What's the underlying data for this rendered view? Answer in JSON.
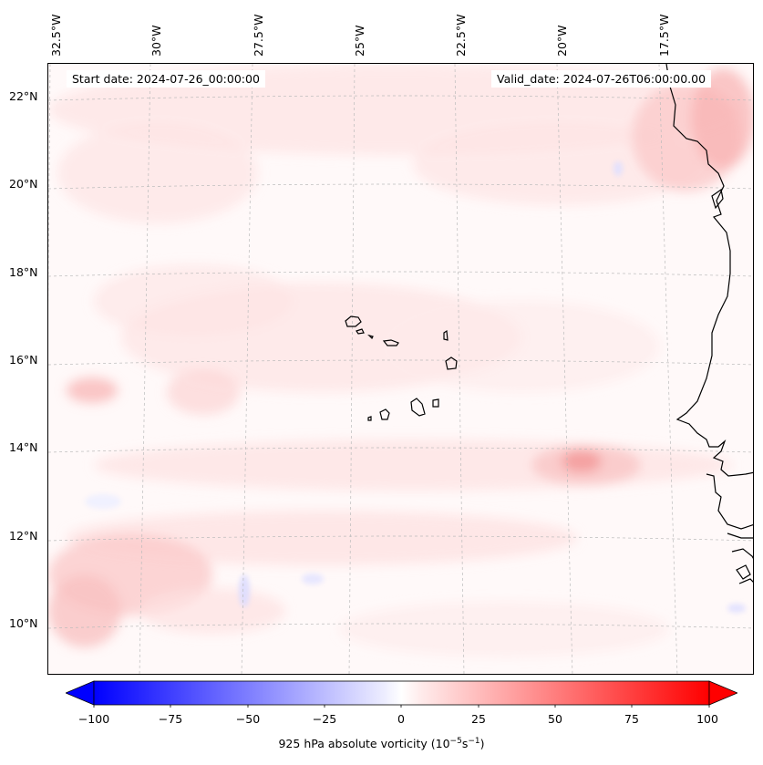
{
  "header": {
    "start_date": "Start date: 2024-07-26_00:00:00",
    "valid_date": "Valid_date: 2024-07-26T06:00:00.00"
  },
  "lon_labels": [
    "32.5°W",
    "30°W",
    "27.5°W",
    "25°W",
    "22.5°W",
    "20°W",
    "17.5°W"
  ],
  "lat_labels": [
    "22°N",
    "20°N",
    "18°N",
    "16°N",
    "14°N",
    "12°N",
    "10°N"
  ],
  "colorbar": {
    "ticks": [
      "−100",
      "−75",
      "−50",
      "−25",
      "0",
      "25",
      "50",
      "75",
      "100"
    ],
    "label_main": "925 hPa absolute vorticity (10",
    "label_exp1": "−5",
    "label_mid": "s",
    "label_exp2": "−1",
    "label_end": ")",
    "range": [
      -100,
      100
    ],
    "colors": {
      "min": "#0000ff",
      "mid": "#ffffff",
      "max": "#ff0000"
    }
  },
  "map": {
    "region": "Eastern tropical Atlantic, Cape Verde and West African coast",
    "extent_lon": [
      -32.5,
      -15.5
    ],
    "extent_lat": [
      8.8,
      22.8
    ],
    "land_outline_color": "#000000",
    "gridline_color": "#bbbbbb"
  }
}
